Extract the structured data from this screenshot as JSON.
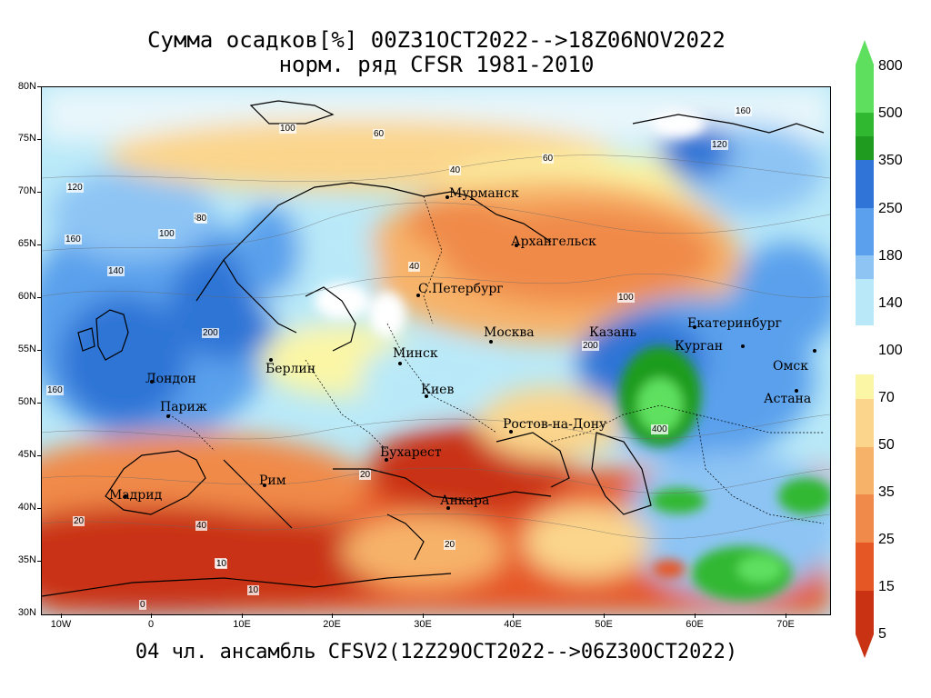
{
  "title": {
    "line1": "Сумма осадков[%] 00Z31OCT2022-->18Z06NOV2022",
    "line2": "норм. ряд CFSR 1981-2010"
  },
  "footer": "04 чл. ансамбль CFSV2(12Z29OCT2022-->06Z30OCT2022)",
  "lat_labels": [
    "80N",
    "75N",
    "70N",
    "65N",
    "60N",
    "55N",
    "50N",
    "45N",
    "40N",
    "35N",
    "30N"
  ],
  "lon_labels": [
    "10W",
    "0",
    "10E",
    "20E",
    "30E",
    "40E",
    "50E",
    "60E",
    "70E"
  ],
  "colorbar": {
    "labels": [
      "800",
      "500",
      "350",
      "250",
      "180",
      "140",
      "100",
      "70",
      "50",
      "35",
      "25",
      "15",
      "5"
    ],
    "colors": {
      "800": "#5ee05e",
      "500": "#31b831",
      "350": "#1f9c1f",
      "250": "#2f74d6",
      "180": "#5aa0ec",
      "140": "#8dc4f4",
      "100": "#b9e9f8",
      "70": "#fbf6a6",
      "50": "#fbd58c",
      "35": "#f7b269",
      "25": "#f08a4a",
      "15": "#e65726",
      "5": "#c93314"
    }
  },
  "cities": [
    {
      "name": "Мурманск"
    },
    {
      "name": "Архангельск"
    },
    {
      "name": "С.Петербург"
    },
    {
      "name": "Москва"
    },
    {
      "name": "Казань"
    },
    {
      "name": "Екатеринбург"
    },
    {
      "name": "Курган"
    },
    {
      "name": "Омск"
    },
    {
      "name": "Астана"
    },
    {
      "name": "Минск"
    },
    {
      "name": "Киев"
    },
    {
      "name": "Берлин"
    },
    {
      "name": "Лондон"
    },
    {
      "name": "Париж"
    },
    {
      "name": "Мадрид"
    },
    {
      "name": "Рим"
    },
    {
      "name": "Бухарест"
    },
    {
      "name": "Анкара"
    },
    {
      "name": "Ростов-на-Дону"
    }
  ],
  "contour_labels": [
    "160",
    "100",
    "120",
    "60",
    "80",
    "40",
    "200",
    "140",
    "400",
    "20",
    "10",
    "0",
    "80",
    "60",
    "100",
    "200",
    "160",
    "120",
    "160",
    "100",
    "40",
    "40",
    "20",
    "10",
    "10",
    "20"
  ]
}
